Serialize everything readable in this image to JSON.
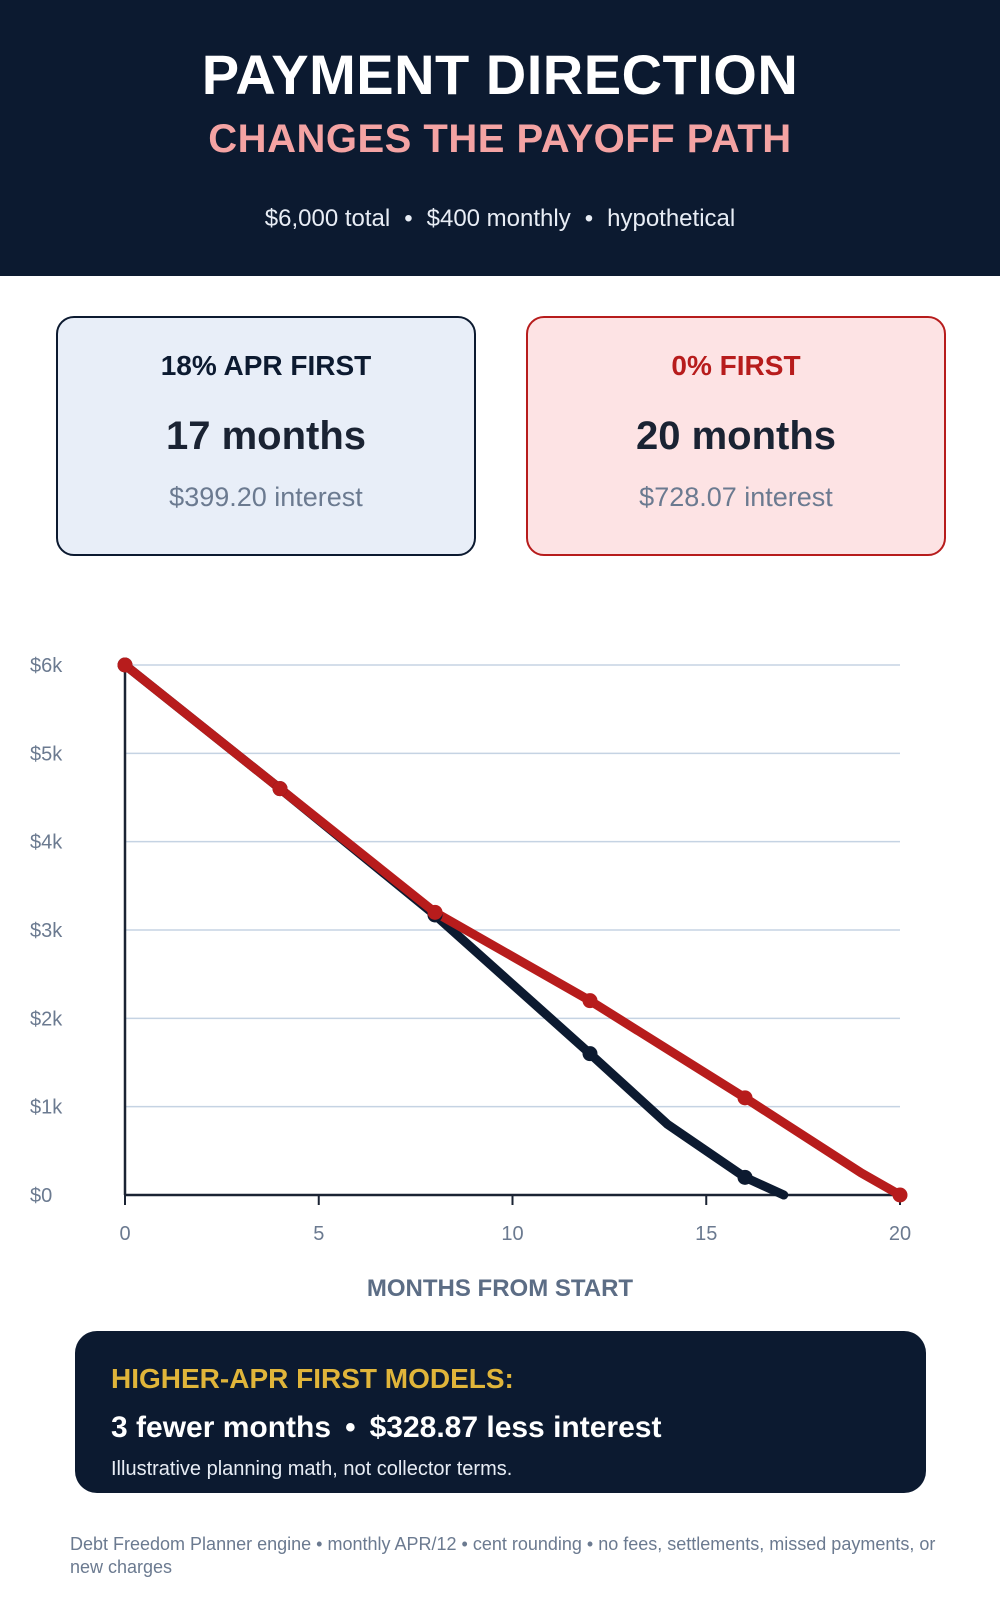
{
  "header": {
    "title": "PAYMENT DIRECTION",
    "subtitle": "CHANGES THE PAYOFF PATH",
    "meta": [
      "$6,000 total",
      "$400 monthly",
      "hypothetical"
    ]
  },
  "cards": [
    {
      "label": "18% APR FIRST",
      "months": "17 months",
      "interest": "$399.20 interest"
    },
    {
      "label": "0% FIRST",
      "months": "20 months",
      "interest": "$728.07 interest"
    }
  ],
  "chart_data": {
    "type": "line",
    "xlabel": "MONTHS FROM START",
    "ylabel": "",
    "xlim": [
      0,
      20
    ],
    "ylim": [
      0,
      6000
    ],
    "x_ticks": [
      "0",
      "5",
      "10",
      "15",
      "20"
    ],
    "x_tick_values": [
      0,
      5,
      10,
      15,
      20
    ],
    "y_ticks": [
      "$0",
      "$1k",
      "$2k",
      "$3k",
      "$4k",
      "$5k",
      "$6k"
    ],
    "y_tick_values": [
      0,
      1000,
      2000,
      3000,
      4000,
      5000,
      6000
    ],
    "grid": "horizontal",
    "series": [
      {
        "color": "#0c1a30",
        "points": [
          [
            0,
            6000
          ],
          [
            4,
            4600
          ],
          [
            8,
            3170
          ],
          [
            12,
            1600
          ],
          [
            14,
            800
          ],
          [
            16,
            200
          ],
          [
            17,
            0
          ]
        ],
        "markers": [
          [
            0,
            6000
          ],
          [
            4,
            4600
          ],
          [
            8,
            3170
          ],
          [
            12,
            1600
          ],
          [
            16,
            200
          ]
        ]
      },
      {
        "color": "#b71c1c",
        "points": [
          [
            0,
            6000
          ],
          [
            4,
            4600
          ],
          [
            8,
            3200
          ],
          [
            12,
            2200
          ],
          [
            16,
            1100
          ],
          [
            19,
            250
          ],
          [
            20,
            0
          ]
        ],
        "markers": [
          [
            0,
            6000
          ],
          [
            4,
            4600
          ],
          [
            8,
            3200
          ],
          [
            12,
            2200
          ],
          [
            16,
            1100
          ],
          [
            20,
            0
          ]
        ]
      }
    ]
  },
  "banner": {
    "heading": "HIGHER-APR FIRST MODELS:",
    "main_months": "3 fewer months",
    "main_interest": "$328.87 less interest",
    "note": "Illustrative planning math, not collector terms."
  },
  "footer": "Debt Freedom Planner engine • monthly APR/12 • cent rounding • no fees, settlements, missed payments, or new charges"
}
